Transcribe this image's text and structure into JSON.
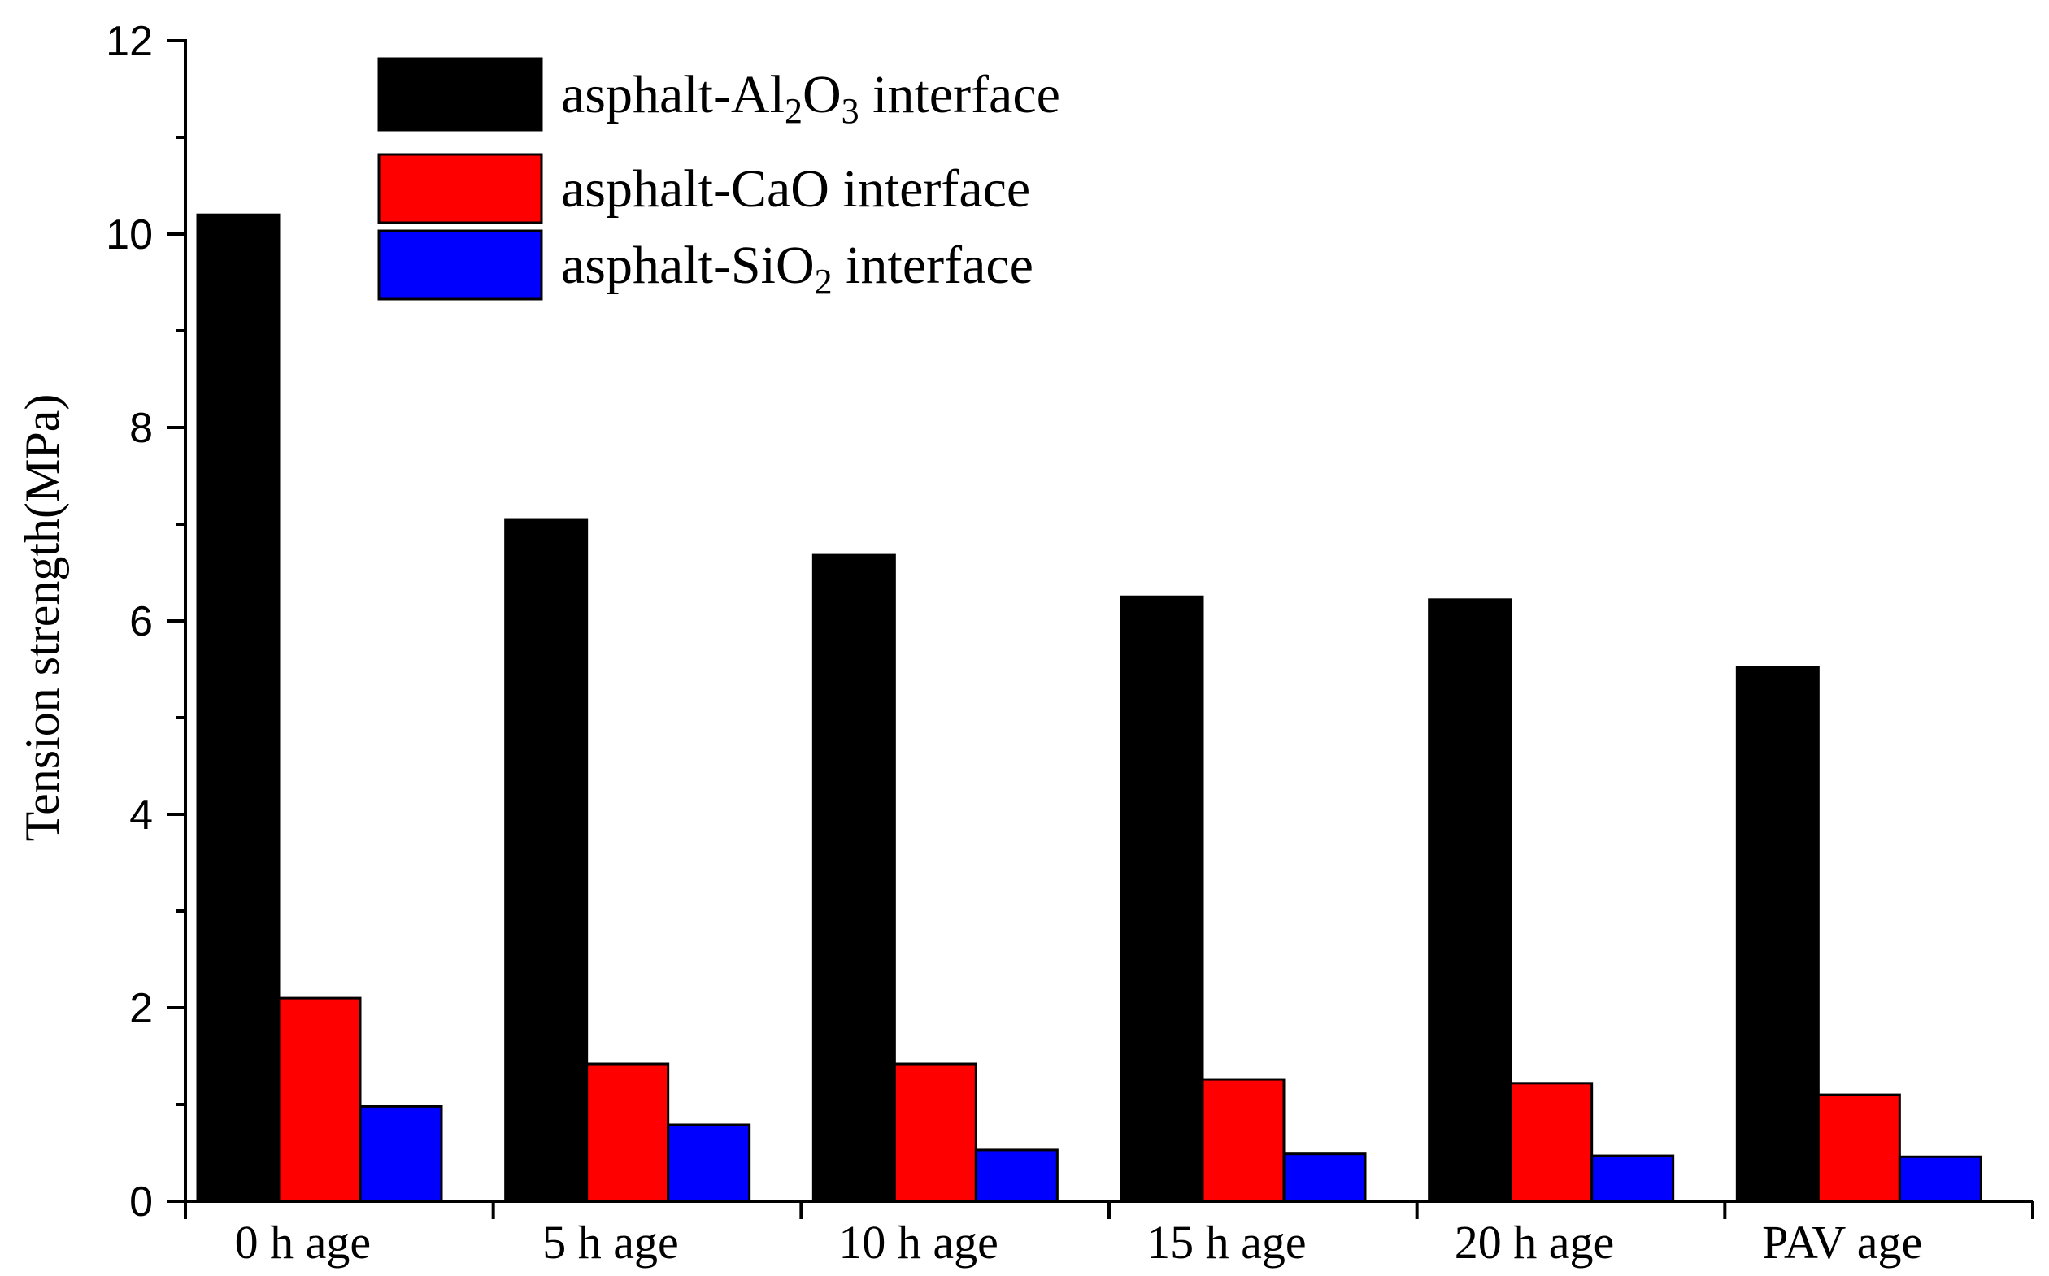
{
  "chart_data": {
    "type": "bar",
    "title": "",
    "xlabel": "",
    "ylabel": "Tension strength(MPa)",
    "ylim": [
      0,
      12
    ],
    "yticks": [
      "0",
      "2",
      "4",
      "6",
      "8",
      "10",
      "12"
    ],
    "grid": false,
    "legend_position": "top-left",
    "categories": [
      "0 h age",
      "5 h age",
      "10 h age",
      "15 h age",
      "20 h age",
      "PAV age"
    ],
    "series": [
      {
        "name": "asphalt-Al2O3 interface",
        "legend": {
          "prefix": "asphalt-Al",
          "sub1": "2",
          "mid": "O",
          "sub2": "3",
          "suffix": " interface"
        },
        "color": "#000000",
        "values": [
          10.2,
          7.05,
          6.68,
          6.25,
          6.22,
          5.52
        ]
      },
      {
        "name": "asphalt-CaO interface",
        "legend": {
          "prefix": "asphalt-CaO interface",
          "sub1": "",
          "mid": "",
          "sub2": "",
          "suffix": ""
        },
        "color": "#ff0000",
        "values": [
          2.1,
          1.42,
          1.42,
          1.26,
          1.22,
          1.1
        ]
      },
      {
        "name": "asphalt-SiO2 interface",
        "legend": {
          "prefix": "asphalt-SiO",
          "sub1": "2",
          "mid": " interface",
          "sub2": "",
          "suffix": ""
        },
        "color": "#0000ff",
        "values": [
          0.98,
          0.79,
          0.53,
          0.49,
          0.47,
          0.46
        ]
      }
    ]
  }
}
